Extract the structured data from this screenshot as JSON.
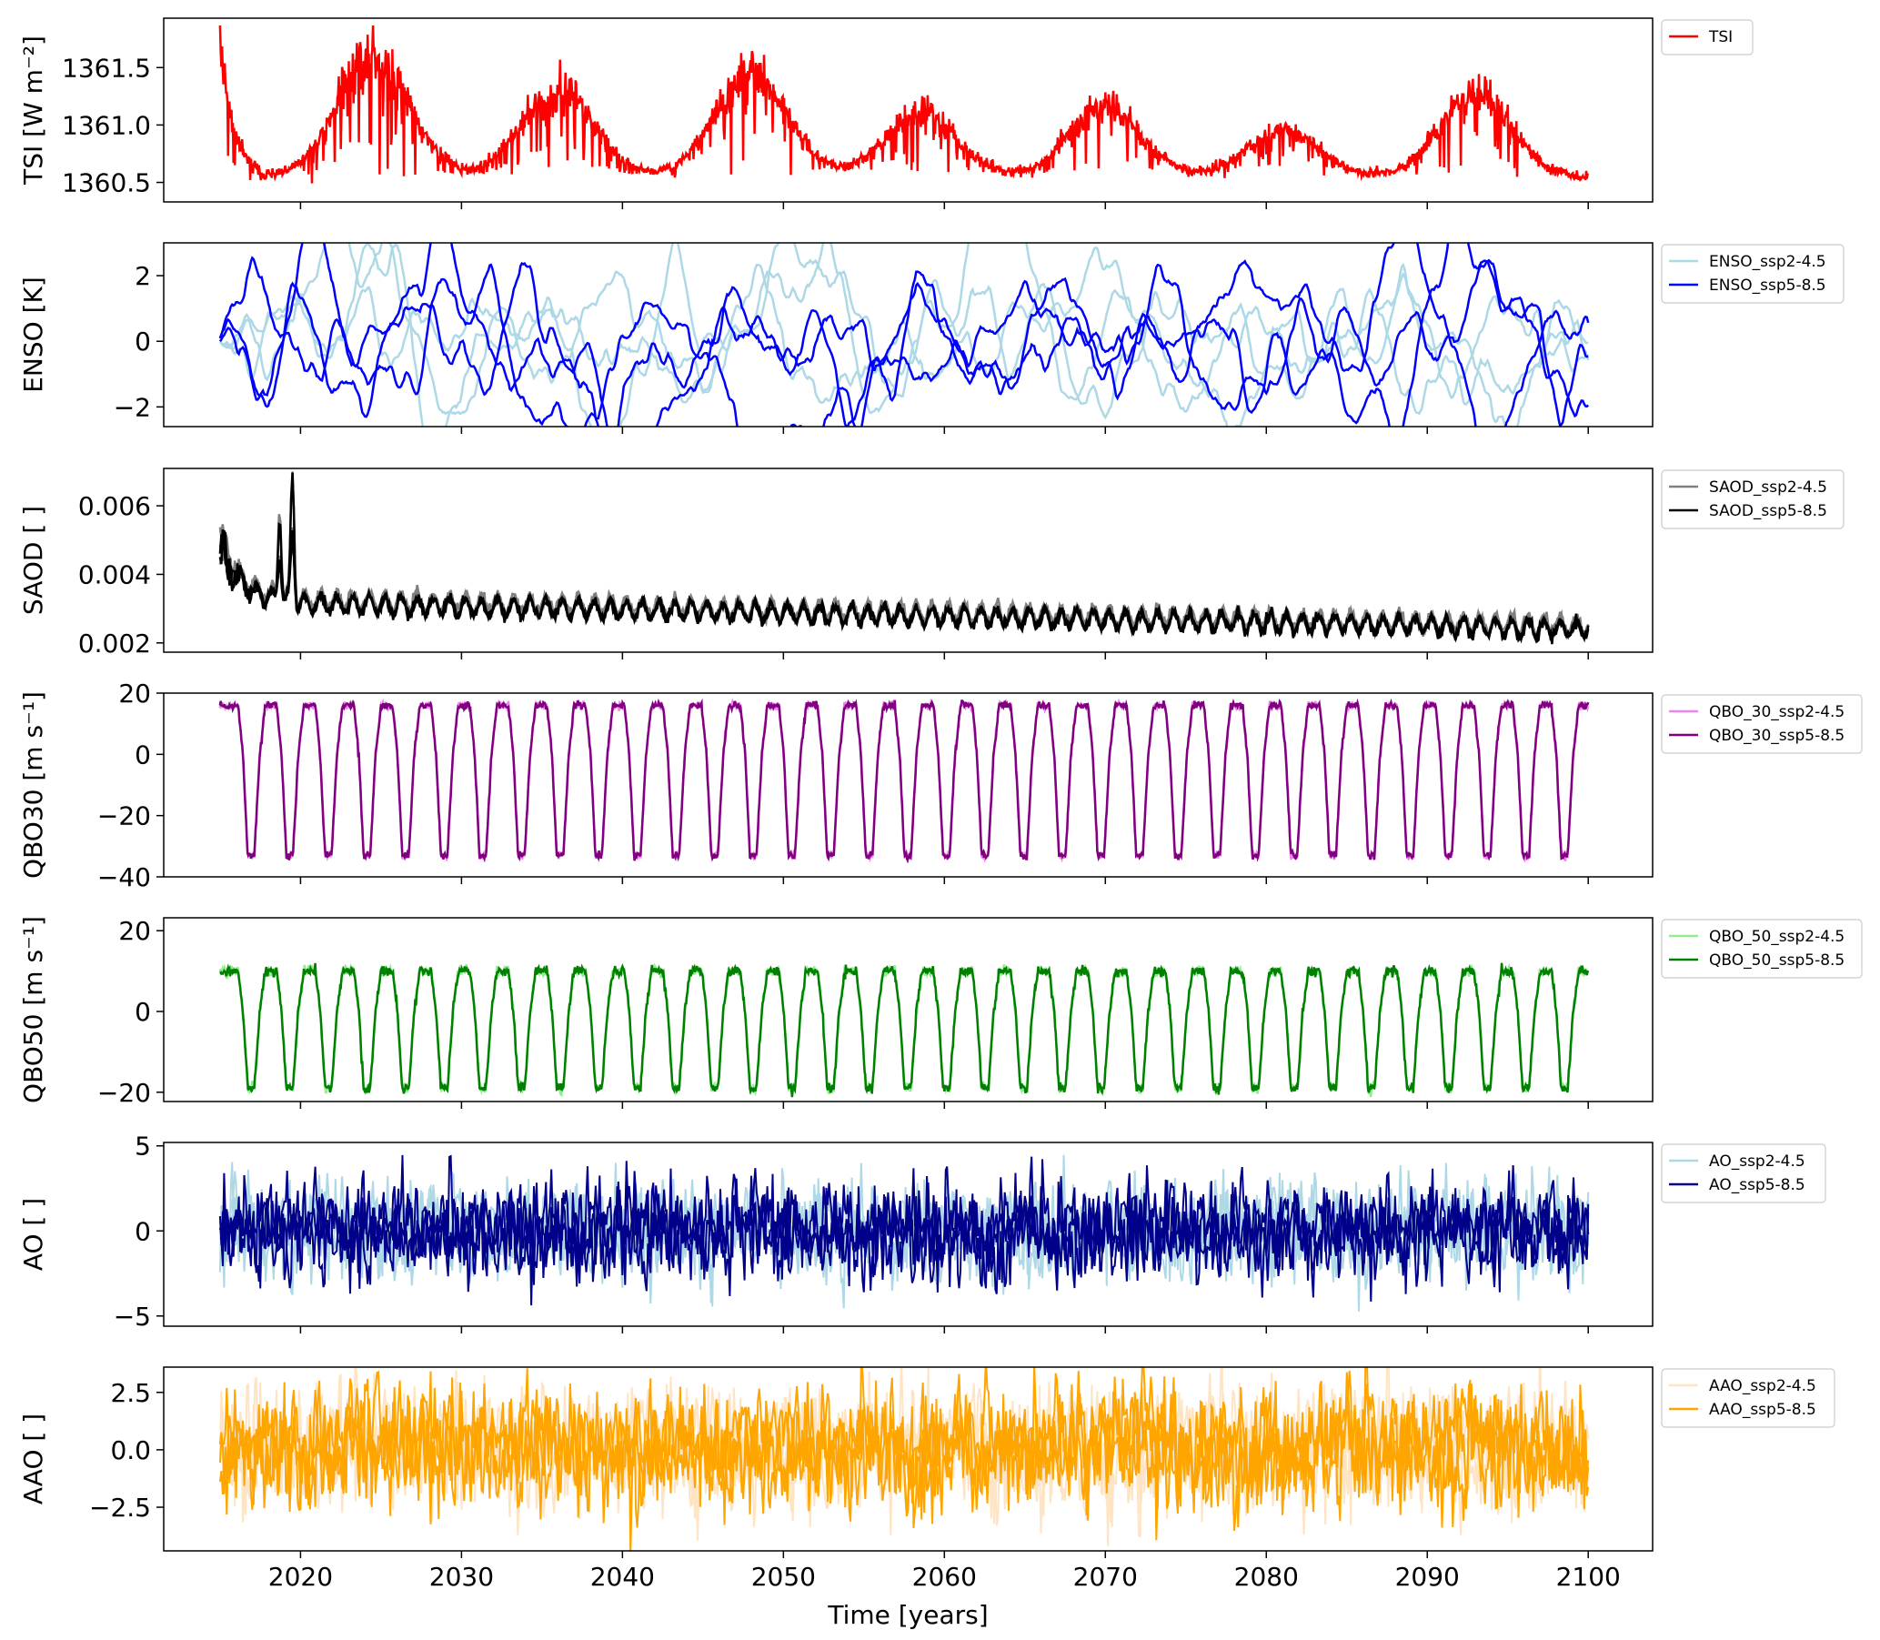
{
  "x_axis": {
    "label": "Time [years]",
    "ticks": [
      2020,
      2030,
      2040,
      2050,
      2060,
      2070,
      2080,
      2090,
      2100
    ],
    "range": [
      2011.5,
      2104
    ]
  },
  "panels": [
    {
      "id": "tsi",
      "ylabel": "TSI [W m⁻²]",
      "ylim": [
        1360.33,
        1361.93
      ],
      "yticks": [
        1360.5,
        1361.0,
        1361.5
      ],
      "ytick_labels": [
        "1360.5",
        "1361.0",
        "1361.5"
      ],
      "legend": [
        {
          "name": "TSI",
          "color": "#ff0000"
        }
      ]
    },
    {
      "id": "enso",
      "ylabel": "ENSO [K]",
      "ylim": [
        -2.6,
        3.0
      ],
      "yticks": [
        -2,
        0,
        2
      ],
      "ytick_labels": [
        "−2",
        "0",
        "2"
      ],
      "legend": [
        {
          "name": "ENSO_ssp2-4.5",
          "color": "#add8e6"
        },
        {
          "name": "ENSO_ssp5-8.5",
          "color": "#0000ff"
        }
      ]
    },
    {
      "id": "saod",
      "ylabel": "SAOD [ ]",
      "ylim": [
        0.00173,
        0.00709
      ],
      "yticks": [
        0.002,
        0.004,
        0.006
      ],
      "ytick_labels": [
        "0.002",
        "0.004",
        "0.006"
      ],
      "legend": [
        {
          "name": "SAOD_ssp2-4.5",
          "color": "#808080"
        },
        {
          "name": "SAOD_ssp5-8.5",
          "color": "#000000"
        }
      ]
    },
    {
      "id": "qbo30",
      "ylabel": "QBO30 [m s⁻¹]",
      "ylim": [
        -40,
        20
      ],
      "yticks": [
        -40,
        -20,
        0,
        20
      ],
      "ytick_labels": [
        "−40",
        "−20",
        "0",
        "20"
      ],
      "legend": [
        {
          "name": "QBO_30_ssp2-4.5",
          "color": "#ee82ee"
        },
        {
          "name": "QBO_30_ssp5-8.5",
          "color": "#800080"
        }
      ]
    },
    {
      "id": "qbo50",
      "ylabel": "QBO50 [m s⁻¹]",
      "ylim": [
        -22.3,
        23.2
      ],
      "yticks": [
        -20,
        0,
        20
      ],
      "ytick_labels": [
        "−20",
        "0",
        "20"
      ],
      "legend": [
        {
          "name": "QBO_50_ssp2-4.5",
          "color": "#90ee90"
        },
        {
          "name": "QBO_50_ssp5-8.5",
          "color": "#008000"
        }
      ]
    },
    {
      "id": "ao",
      "ylabel": "AO [ ]",
      "ylim": [
        -5.6,
        5.2
      ],
      "yticks": [
        -5,
        0,
        5
      ],
      "ytick_labels": [
        "−5",
        "0",
        "5"
      ],
      "legend": [
        {
          "name": "AO_ssp2-4.5",
          "color": "#add8e6"
        },
        {
          "name": "AO_ssp5-8.5",
          "color": "#00008b"
        }
      ]
    },
    {
      "id": "aao",
      "ylabel": "AAO [ ]",
      "ylim": [
        -4.4,
        3.6
      ],
      "yticks": [
        -2.5,
        0.0,
        2.5
      ],
      "ytick_labels": [
        "−2.5",
        "0.0",
        "2.5"
      ],
      "legend": [
        {
          "name": "AAO_ssp2-4.5",
          "color": "#ffe4c4"
        },
        {
          "name": "AAO_ssp5-8.5",
          "color": "#ffa500"
        }
      ]
    }
  ],
  "chart_data": {
    "type": "line",
    "time_start": 2015,
    "time_end": 2100,
    "tsi": {
      "cycle_minima_years": [
        2019,
        2031,
        2043,
        2053.5,
        2064.5,
        2076,
        2087
      ],
      "cycle_maxima_years": [
        2024.5,
        2036,
        2048,
        2058.5,
        2070,
        2081,
        2093
      ],
      "cycle_max_values": [
        1361.6,
        1361.3,
        1361.45,
        1361.1,
        1361.15,
        1360.95,
        1361.25
      ],
      "min_value": 1360.55,
      "initial_value": 1361.8
    },
    "enso": {
      "amplitude_K": 2.0,
      "members_per_scenario": 3
    },
    "saod": {
      "baseline_start": 0.0032,
      "baseline_end": 0.0024,
      "peaks": [
        {
          "year": 2018.7,
          "value": 0.0058
        },
        {
          "year": 2019.5,
          "value": 0.0069
        }
      ]
    },
    "qbo30": {
      "period_years": 2.4,
      "max": 16,
      "min": -33
    },
    "qbo50": {
      "period_years": 2.4,
      "max": 10,
      "min": -19
    },
    "ao": {
      "std": 1.3
    },
    "aao": {
      "std": 1.2
    }
  }
}
